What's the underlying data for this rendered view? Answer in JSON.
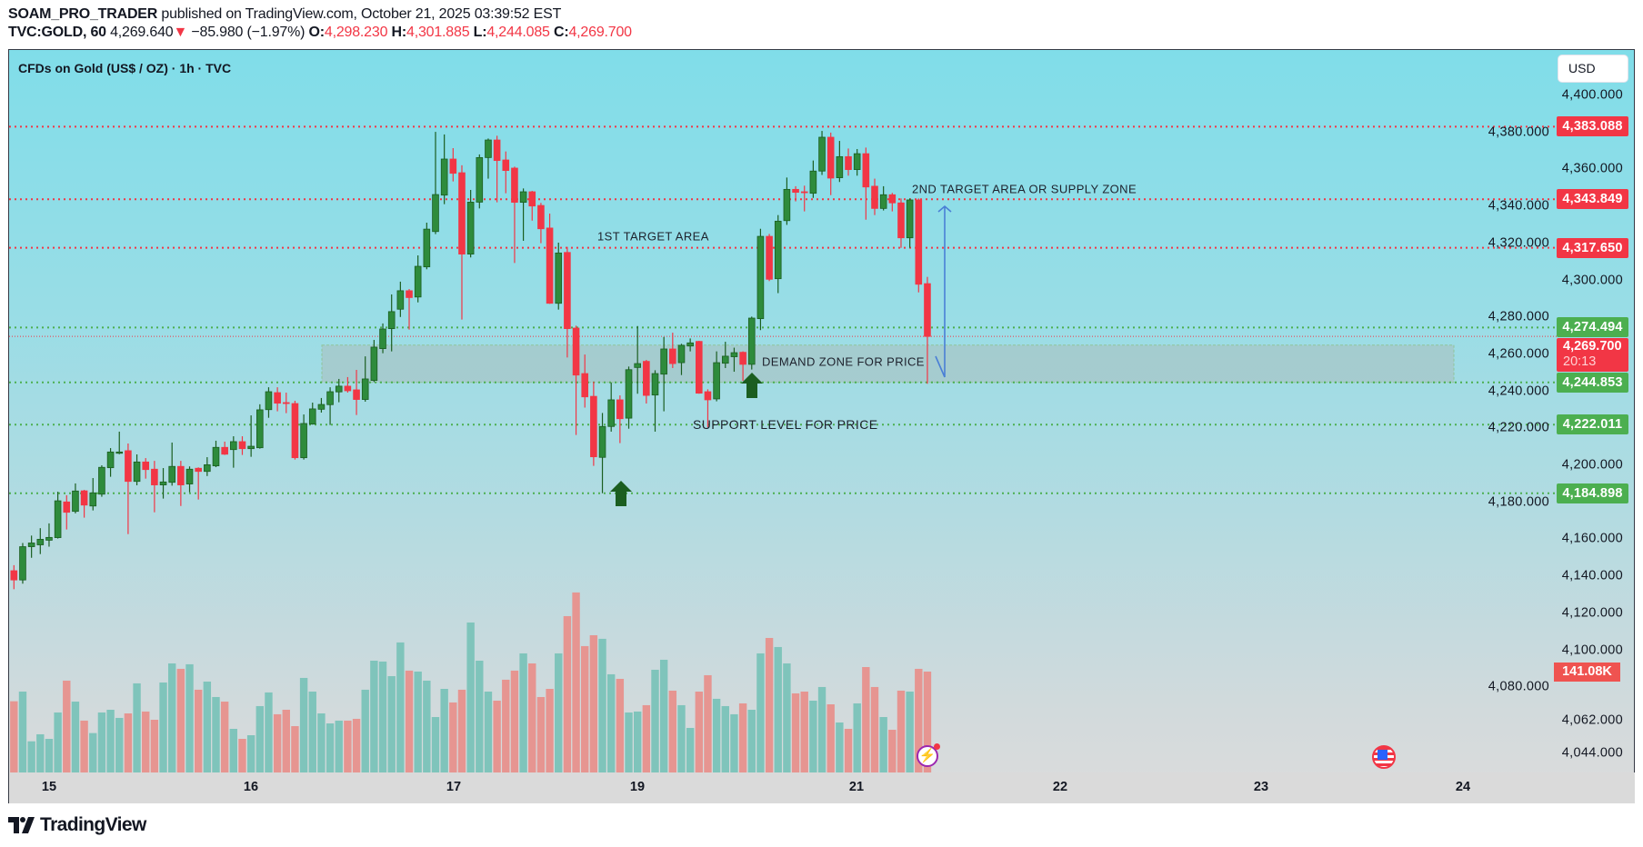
{
  "header": {
    "author": "SOAM_PRO_TRADER",
    "published": " published on TradingView.com, October 21, 2025 03:39:52 EST",
    "symbol": "TVC:GOLD, 60",
    "last": " 4,269.640",
    "change_arrow": "▼",
    "change": " −85.980 (−1.97%) ",
    "o_label": "O:",
    "o": "4,298.230",
    "h_label": " H:",
    "h": "4,301.885",
    "l_label": " L:",
    "l": "4,244.085",
    "c_label": " C:",
    "c": "4,269.700"
  },
  "chart_title": "CFDs on Gold (US$ / OZ) · 1h · TVC",
  "currency_button": "USD",
  "colors": {
    "up": "#2e8b3c",
    "down": "#f23645",
    "vol_up": "#7fc4bb",
    "vol_down": "#e69591",
    "resistance": "#f23645",
    "support": "#4caf50",
    "arrow_green": "#1b5e20",
    "arrow_blue": "#4a7fd6"
  },
  "chart_data": {
    "type": "candlestick",
    "ylim": [
      4044,
      4400
    ],
    "yticks": [
      "4,400.000",
      "4,380.000",
      "4,360.000",
      "4,340.000",
      "4,320.000",
      "4,300.000",
      "4,280.000",
      "4,260.000",
      "4,240.000",
      "4,220.000",
      "4,200.000",
      "4,180.000",
      "4,160.000",
      "4,140.000",
      "4,120.000",
      "4,100.000",
      "4,080.000",
      "4,062.000",
      "4,044.000"
    ],
    "ytick_values": [
      4400,
      4380,
      4360,
      4340,
      4320,
      4300,
      4280,
      4260,
      4240,
      4220,
      4200,
      4180,
      4160,
      4140,
      4120,
      4100,
      4080,
      4062,
      4044
    ],
    "xticks": [
      "15",
      "16",
      "17",
      "19",
      "21",
      "22",
      "23",
      "24"
    ],
    "ohlc": [
      [
        4148,
        4150,
        4136,
        4141
      ],
      [
        4143,
        4146,
        4133,
        4138
      ],
      [
        4138,
        4158,
        4136,
        4156
      ],
      [
        4156,
        4162,
        4150,
        4158
      ],
      [
        4157,
        4166,
        4152,
        4160
      ],
      [
        4159.5,
        4168.6,
        4156,
        4161
      ],
      [
        4160.9,
        4185.7,
        4160.4,
        4180.8
      ],
      [
        4180.2,
        4183.8,
        4165.3,
        4174.6
      ],
      [
        4175.1,
        4190.2,
        4174,
        4186.1
      ],
      [
        4186.2,
        4186.7,
        4171.7,
        4178.5
      ],
      [
        4178,
        4193.1,
        4175.6,
        4185.1
      ],
      [
        4184.4,
        4200,
        4183,
        4198.9
      ],
      [
        4198.7,
        4209.3,
        4193.8,
        4207.2
      ],
      [
        4206.5,
        4218.2,
        4206,
        4207.2
      ],
      [
        4207.9,
        4211.8,
        4162.8,
        4191.3
      ],
      [
        4191.3,
        4205.9,
        4189.2,
        4201.8
      ],
      [
        4201.8,
        4203.9,
        4192.8,
        4197.7
      ],
      [
        4197.9,
        4202.4,
        4174.6,
        4189.4
      ],
      [
        4189.4,
        4198.5,
        4182,
        4191
      ],
      [
        4190.8,
        4212.3,
        4189,
        4199.4
      ],
      [
        4199.4,
        4202.4,
        4178,
        4189.4
      ],
      [
        4189.9,
        4199.4,
        4185.4,
        4197.9
      ],
      [
        4198.4,
        4198.9,
        4181.5,
        4196.7
      ],
      [
        4196.7,
        4204.4,
        4194.2,
        4200.3
      ],
      [
        4199.7,
        4213.3,
        4199,
        4209.7
      ],
      [
        4209.7,
        4212.8,
        4205.6,
        4206
      ],
      [
        4208.5,
        4215.7,
        4198.7,
        4212.8
      ],
      [
        4212.8,
        4215.7,
        4205.6,
        4209
      ],
      [
        4209,
        4227,
        4204.6,
        4210.3
      ],
      [
        4209.5,
        4233,
        4209,
        4230
      ],
      [
        4230.1,
        4242.2,
        4225.7,
        4239.8
      ],
      [
        4239.3,
        4242.2,
        4229.2,
        4233.6
      ],
      [
        4233.9,
        4239.3,
        4228.2,
        4233.6
      ],
      [
        4233.4,
        4234.9,
        4203.1,
        4204.1
      ],
      [
        4204.1,
        4227.5,
        4203.1,
        4222.6
      ],
      [
        4222.3,
        4233.9,
        4222,
        4230.5
      ],
      [
        4230.3,
        4236.4,
        4228.5,
        4232.9
      ],
      [
        4232.8,
        4242.2,
        4221.8,
        4239.8
      ],
      [
        4239.7,
        4246.7,
        4234.1,
        4242.8
      ],
      [
        4242.8,
        4247.7,
        4239.3,
        4240.3
      ],
      [
        4240.8,
        4251.6,
        4227.2,
        4235.6
      ],
      [
        4235.6,
        4258.9,
        4234.4,
        4246.7
      ],
      [
        4245.9,
        4267.8,
        4245,
        4263.9
      ],
      [
        4263.1,
        4276.7,
        4260.6,
        4273.7
      ],
      [
        4273.9,
        4292.4,
        4261.6,
        4283.1
      ],
      [
        4284.4,
        4299.3,
        4280.2,
        4294.4
      ],
      [
        4294.4,
        4295.3,
        4273.4,
        4290.7
      ],
      [
        4291,
        4313.5,
        4288.1,
        4307.6
      ],
      [
        4307.3,
        4331.2,
        4306,
        4327.7
      ],
      [
        4326.4,
        4380.3,
        4325,
        4346.4
      ],
      [
        4346.1,
        4378.9,
        4341.2,
        4365.6
      ],
      [
        4365.6,
        4371.5,
        4353.5,
        4357.9
      ],
      [
        4358.2,
        4362.2,
        4278.8,
        4314.2
      ],
      [
        4314.2,
        4348.9,
        4312.4,
        4342.3
      ],
      [
        4342.3,
        4368.1,
        4338.9,
        4366.4
      ],
      [
        4366.4,
        4376.7,
        4355,
        4375.9
      ],
      [
        4375.9,
        4378.2,
        4342.2,
        4364.8
      ],
      [
        4365.1,
        4369.7,
        4347.1,
        4359.4
      ],
      [
        4360.7,
        4361.5,
        4309.4,
        4342.2
      ],
      [
        4342.2,
        4349.7,
        4321.4,
        4347.9
      ],
      [
        4347.9,
        4348.4,
        4332.3,
        4340.2
      ],
      [
        4340.5,
        4341.9,
        4320.1,
        4327.9
      ],
      [
        4328.3,
        4336.1,
        4287.3,
        4287.6
      ],
      [
        4287.6,
        4320.4,
        4284.2,
        4314.8
      ],
      [
        4315.1,
        4318.1,
        4258.3,
        4273.9
      ],
      [
        4274.2,
        4275.5,
        4216.4,
        4248.8
      ],
      [
        4249.6,
        4259.9,
        4231.2,
        4237
      ],
      [
        4237.3,
        4245.2,
        4199.7,
        4204.6
      ],
      [
        4204.3,
        4228.3,
        4184.9,
        4221
      ],
      [
        4221,
        4244.7,
        4218.2,
        4235.4
      ],
      [
        4235.4,
        4237.8,
        4212,
        4225.2
      ],
      [
        4225.5,
        4253.4,
        4219.8,
        4251.7
      ],
      [
        4252.9,
        4275.3,
        4238.7,
        4255
      ],
      [
        4256.2,
        4257,
        4233.4,
        4237.8
      ],
      [
        4238,
        4251.4,
        4218.2,
        4249.6
      ],
      [
        4249.3,
        4269.4,
        4229.2,
        4262.9
      ],
      [
        4262.9,
        4271.7,
        4252.6,
        4255
      ],
      [
        4255.5,
        4265.7,
        4248.8,
        4264.9
      ],
      [
        4264.5,
        4268.6,
        4261.6,
        4266.2
      ],
      [
        4267,
        4267.3,
        4238.7,
        4239
      ],
      [
        4239.8,
        4241.1,
        4220.6,
        4235.4
      ],
      [
        4235.9,
        4261.6,
        4234.6,
        4255.5
      ],
      [
        4255.2,
        4266.8,
        4252.6,
        4259
      ],
      [
        4258.7,
        4263.6,
        4250.6,
        4260.9
      ],
      [
        4261.1,
        4261.6,
        4245.7,
        4254.6
      ],
      [
        4254.6,
        4280.4,
        4251.8,
        4279.6
      ],
      [
        4279.3,
        4327.9,
        4273.1,
        4323.8
      ],
      [
        4323.8,
        4325.1,
        4299.6,
        4300.6
      ],
      [
        4300.9,
        4335.3,
        4293.1,
        4332
      ],
      [
        4332.3,
        4355.6,
        4330,
        4349.2
      ],
      [
        4349.2,
        4350.9,
        4342.7,
        4347.6
      ],
      [
        4347.9,
        4351.2,
        4337.3,
        4347.4
      ],
      [
        4347.1,
        4364.8,
        4344.6,
        4359.1
      ],
      [
        4359.1,
        4380.8,
        4357,
        4377.4
      ],
      [
        4377.4,
        4379.9,
        4346.1,
        4355.3
      ],
      [
        4355.5,
        4375.4,
        4353.2,
        4366.9
      ],
      [
        4366.9,
        4371.3,
        4356.6,
        4359.9
      ],
      [
        4359.9,
        4371,
        4356.6,
        4368.5
      ],
      [
        4368.5,
        4371.8,
        4332.8,
        4350.5
      ],
      [
        4350.9,
        4355,
        4335.3,
        4338.9
      ],
      [
        4338.9,
        4350.9,
        4337.8,
        4346.3
      ],
      [
        4346.3,
        4347.3,
        4337.3,
        4341.9
      ],
      [
        4341.9,
        4344.3,
        4317.6,
        4323
      ],
      [
        4323,
        4344.3,
        4317.6,
        4343.5
      ],
      [
        4343.5,
        4344.3,
        4293.5,
        4297.9
      ],
      [
        4298.23,
        4301.885,
        4244.085,
        4269.7
      ]
    ],
    "volume_k": [
      60,
      99.6,
      113.1,
      43.6,
      53.4,
      47.0,
      83.9,
      128.4,
      99.1,
      72.5,
      55.1,
      83.9,
      87.7,
      76.3,
      82.6,
      124.6,
      85.2,
      73.7,
      125.8,
      152.5,
      144.9,
      151.3,
      115.7,
      127.1,
      105.5,
      99.1,
      61.0,
      47.0,
      52.1,
      92.8,
      111.9,
      81.4,
      87.7,
      64.8,
      132.2,
      113.1,
      82.6,
      68.6,
      72.5,
      72.5,
      75.0,
      115.7,
      156.3,
      155.1,
      134.7,
      181.8,
      142.4,
      141.1,
      128.4,
      77.5,
      116.9,
      97.9,
      115.7,
      209.7,
      156.3,
      113.1,
      100.4,
      129.7,
      142.4,
      166.5,
      152.5,
      105.5,
      116.9,
      166.5,
      218.6,
      251.7,
      176.7,
      191.9,
      186.9,
      137.3,
      130.9,
      83.9,
      85.2,
      94.1,
      143.6,
      157.6,
      114.4,
      94.1,
      62.3,
      113.1,
      136.0,
      103.0,
      92.8,
      81.4,
      96.6,
      87.7,
      166.5,
      188.1,
      175.4,
      152.5,
      110.6,
      113.1,
      100.4,
      119.5,
      95.3,
      69.9,
      61.0,
      96.6,
      147.4,
      119.5,
      77.5,
      59.7,
      114.4,
      113.1,
      144.9,
      141.08
    ],
    "last_volume_label": "141.08K",
    "levels": [
      {
        "price": 4383.088,
        "label": "4,383.088",
        "kind": "resistance"
      },
      {
        "price": 4343.849,
        "label": "4,343.849",
        "kind": "resistance"
      },
      {
        "price": 4317.65,
        "label": "4,317.650",
        "kind": "resistance"
      },
      {
        "price": 4274.494,
        "label": "4,274.494",
        "kind": "support"
      },
      {
        "price": 4244.853,
        "label": "4,244.853",
        "kind": "support"
      },
      {
        "price": 4222.011,
        "label": "4,222.011",
        "kind": "support"
      },
      {
        "price": 4184.898,
        "label": "4,184.898",
        "kind": "support"
      }
    ],
    "current_price": {
      "price": 4269.7,
      "label": "4,269.700",
      "countdown": "20:13"
    },
    "demand_zone": {
      "top": 4265,
      "bottom": 4244.853
    },
    "annotations": {
      "first_target": "1ST TARGET AREA",
      "second_target": "2ND TARGET AREA OR SUPPLY ZONE",
      "demand_zone": "DEMAND ZONE FOR PRICE",
      "support_level": "SUPPORT LEVEL FOR PRICE"
    }
  },
  "icons": {
    "news": "lightning-icon",
    "event": "us-flag-icon"
  },
  "footer": {
    "logo": "TradingView"
  }
}
